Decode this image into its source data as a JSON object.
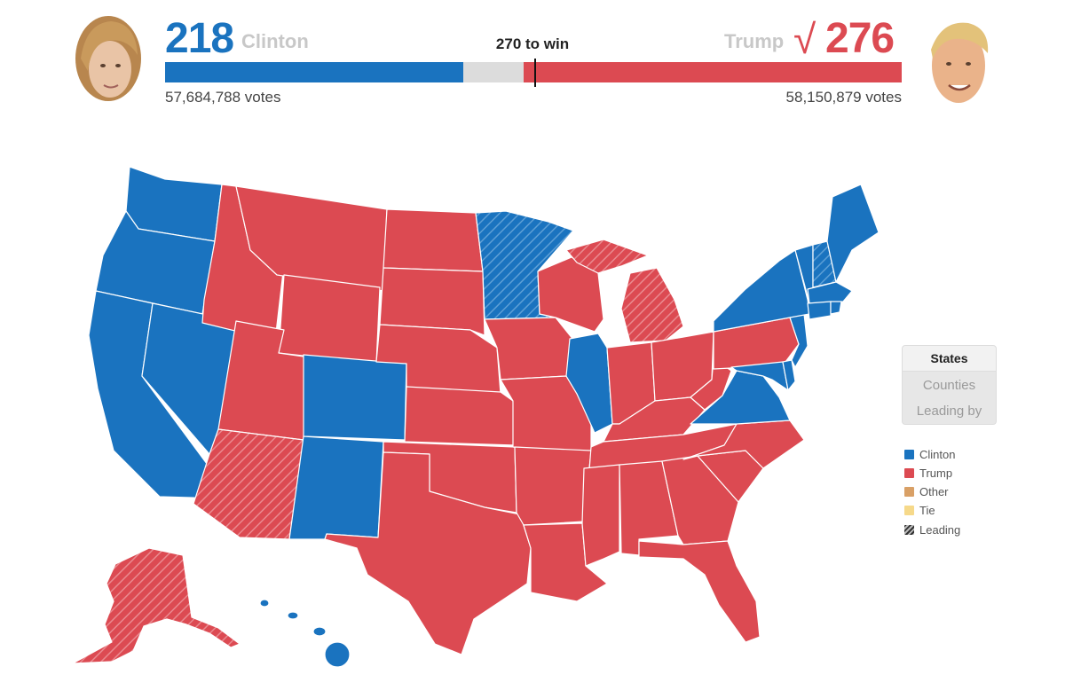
{
  "header": {
    "left": {
      "electoral": "218",
      "name": "Clinton",
      "votes": "57,684,788 votes",
      "color": "#1a73bf"
    },
    "right": {
      "electoral": "276",
      "name": "Trump",
      "votes": "58,150,879 votes",
      "color": "#dc4a52",
      "winner_mark": "√"
    },
    "to_win": "270 to win",
    "bar": {
      "total": 538,
      "threshold": 270,
      "clinton": 218,
      "trump": 276
    }
  },
  "view_toggle": {
    "options": [
      "States",
      "Counties",
      "Leading by"
    ],
    "selected": "States"
  },
  "legend": [
    {
      "label": "Clinton",
      "color": "#1a73bf"
    },
    {
      "label": "Trump",
      "color": "#dc4a52"
    },
    {
      "label": "Other",
      "color": "#d9a066"
    },
    {
      "label": "Tie",
      "color": "#f6d98a"
    },
    {
      "label": "Leading",
      "color": "#555555",
      "pattern": "hatched"
    }
  ],
  "colors": {
    "clinton": "#1a73bf",
    "trump": "#dc4a52",
    "background": "#ffffff"
  }
}
